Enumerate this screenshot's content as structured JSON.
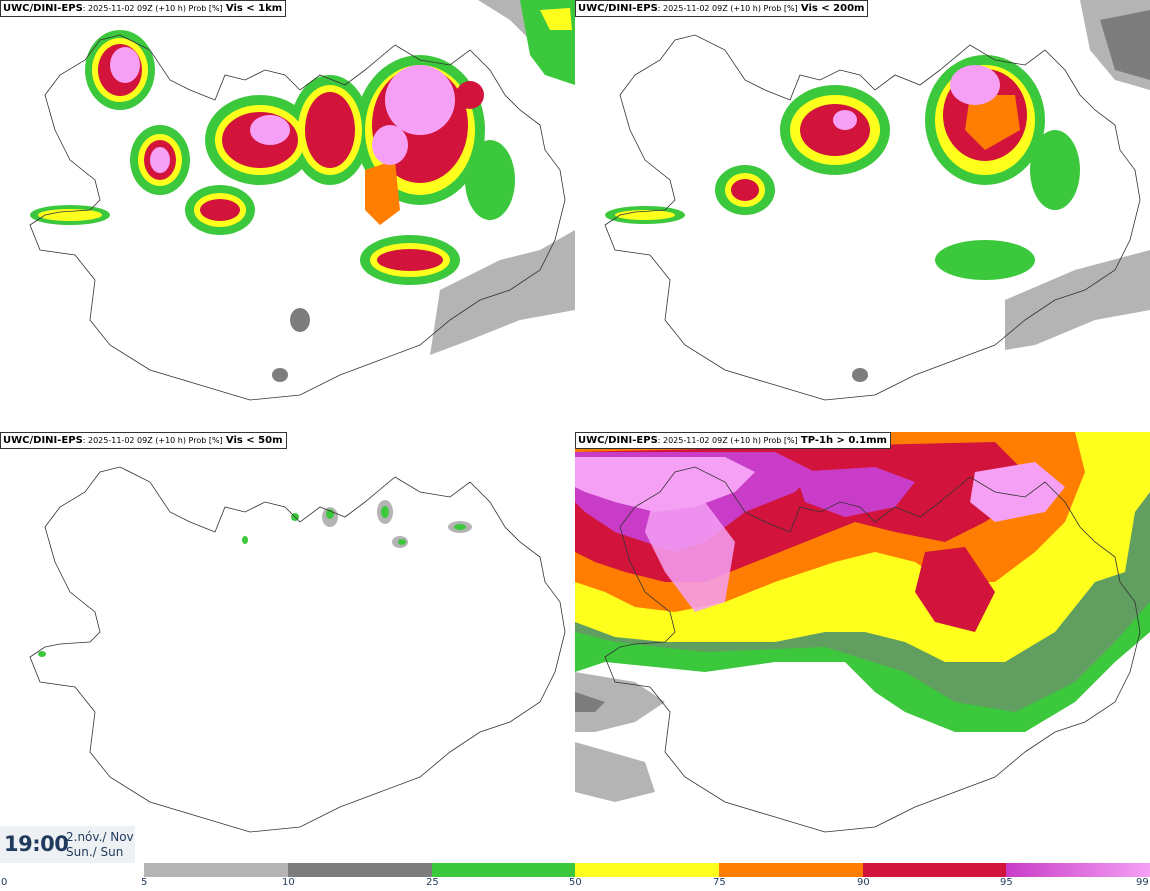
{
  "panels": [
    {
      "model": "UWC/DINI-EPS",
      "meta": ": 2025-11-02 09Z (+10 h) Prob [%]",
      "variable": "Vis < 1km"
    },
    {
      "model": "UWC/DINI-EPS",
      "meta": ": 2025-11-02 09Z (+10 h) Prob [%]",
      "variable": "Vis < 200m"
    },
    {
      "model": "UWC/DINI-EPS",
      "meta": ": 2025-11-02 09Z (+10 h) Prob [%]",
      "variable": "Vis < 50m"
    },
    {
      "model": "UWC/DINI-EPS",
      "meta": ": 2025-11-02 09Z (+10 h) Prob [%]",
      "variable": "TP-1h > 0.1mm"
    }
  ],
  "time_box": {
    "time": "19:00",
    "date_line": "2.nóv./ Nov",
    "day_line": "Sun./ Sun"
  },
  "colorbar": {
    "ticks": [
      "0",
      "5",
      "10",
      "25",
      "50",
      "75",
      "90",
      "95",
      "99"
    ],
    "colors": [
      "#ffffff",
      "#b4b4b4",
      "#7d7d7d",
      "#3cc83c",
      "#ffff1e",
      "#ff7d00",
      "#d2143c",
      "#c83cc8",
      "#f5a0f5"
    ]
  }
}
